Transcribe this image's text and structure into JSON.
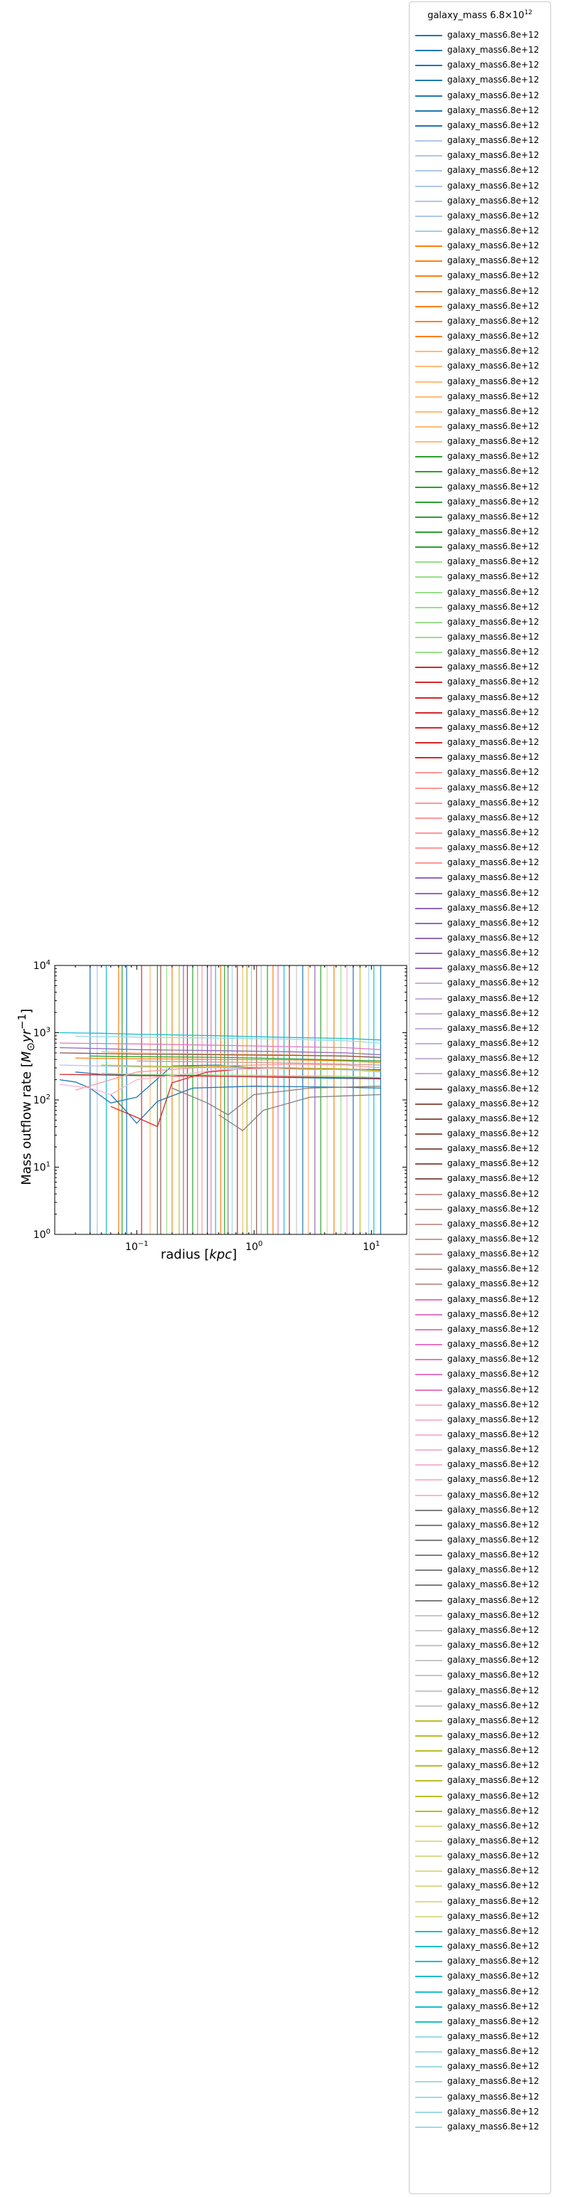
{
  "chart_data": {
    "type": "line",
    "xlabel": "radius [kpc]",
    "ylabel": "Mass outflow rate [M⊙yr⁻¹]",
    "x_scale": "log",
    "y_scale": "log",
    "xlim": [
      0.02,
      20
    ],
    "ylim": [
      1,
      10000
    ],
    "x_ticks": [
      {
        "value": 0.1,
        "base": "10",
        "exp": "−1"
      },
      {
        "value": 1,
        "base": "10",
        "exp": "0"
      },
      {
        "value": 10,
        "base": "10",
        "exp": "1"
      }
    ],
    "y_ticks": [
      {
        "value": 1,
        "base": "10",
        "exp": "0"
      },
      {
        "value": 10,
        "base": "10",
        "exp": "1"
      },
      {
        "value": 100,
        "base": "10",
        "exp": "2"
      },
      {
        "value": 1000,
        "base": "10",
        "exp": "3"
      },
      {
        "value": 10000,
        "base": "10",
        "exp": "4"
      }
    ],
    "legend": {
      "title_base": "galaxy_mass 6.8×10",
      "title_exp": "12",
      "placement": "outside right",
      "entry_label": "galaxy_mass6.8e+12",
      "colors": [
        "#1f77b4",
        "#aec7e8",
        "#ff7f0e",
        "#ffbb78",
        "#2ca02c",
        "#98df8a",
        "#d62728",
        "#ff9896",
        "#9467bd",
        "#c5b0d5",
        "#8c564b",
        "#c49c94",
        "#e377c2",
        "#f7b6d2",
        "#7f7f7f",
        "#c7c7c7",
        "#bcbd22",
        "#dbdb8d",
        "#17becf",
        "#9edae5"
      ],
      "entries_per_color": 7
    },
    "series": [
      {
        "color": "#1f77b4",
        "x": [
          0.022,
          0.03,
          0.04,
          0.06,
          0.1,
          0.2,
          0.5,
          1,
          3,
          12
        ],
        "y": [
          200,
          185,
          150,
          90,
          110,
          320,
          330,
          300,
          285,
          280
        ]
      },
      {
        "color": "#1f77b4",
        "x": [
          0.03,
          0.05,
          0.1,
          0.3,
          1,
          5,
          12
        ],
        "y": [
          260,
          240,
          235,
          230,
          220,
          210,
          205
        ]
      },
      {
        "color": "#1f77b4",
        "x": [
          0.06,
          0.08,
          0.1,
          0.15,
          0.3,
          1,
          5,
          12
        ],
        "y": [
          120,
          70,
          45,
          95,
          150,
          160,
          155,
          150
        ]
      },
      {
        "color": "#aec7e8",
        "x": [
          0.022,
          0.05,
          0.1,
          0.5,
          2,
          6,
          12
        ],
        "y": [
          330,
          320,
          310,
          300,
          290,
          280,
          260
        ]
      },
      {
        "color": "#ff7f0e",
        "x": [
          0.03,
          0.1,
          0.5,
          2,
          6,
          12
        ],
        "y": [
          420,
          410,
          400,
          395,
          380,
          360
        ]
      },
      {
        "color": "#ffbb78",
        "x": [
          0.05,
          0.1,
          0.5,
          2,
          6,
          12
        ],
        "y": [
          520,
          500,
          480,
          470,
          450,
          420
        ]
      },
      {
        "color": "#2ca02c",
        "x": [
          0.04,
          0.1,
          0.5,
          2,
          6,
          12
        ],
        "y": [
          450,
          440,
          430,
          410,
          390,
          380
        ]
      },
      {
        "color": "#98df8a",
        "x": [
          0.05,
          0.1,
          0.5,
          2,
          6,
          12
        ],
        "y": [
          250,
          240,
          235,
          230,
          225,
          215
        ]
      },
      {
        "color": "#d62728",
        "x": [
          0.022,
          0.05,
          0.1,
          0.5,
          2,
          6,
          12
        ],
        "y": [
          240,
          235,
          230,
          225,
          220,
          215,
          210
        ]
      },
      {
        "color": "#d62728",
        "x": [
          0.06,
          0.1,
          0.15,
          0.2,
          0.4,
          1,
          5,
          12
        ],
        "y": [
          80,
          55,
          40,
          180,
          260,
          300,
          290,
          280
        ]
      },
      {
        "color": "#ff9896",
        "x": [
          0.03,
          0.06,
          0.1,
          0.5,
          2,
          6,
          12
        ],
        "y": [
          140,
          200,
          260,
          320,
          340,
          330,
          300
        ]
      },
      {
        "color": "#9467bd",
        "x": [
          0.022,
          0.05,
          0.1,
          0.5,
          2,
          6,
          12
        ],
        "y": [
          600,
          580,
          560,
          540,
          520,
          500,
          470
        ]
      },
      {
        "color": "#8c564b",
        "x": [
          0.022,
          0.05,
          0.1,
          0.5,
          2,
          6,
          12
        ],
        "y": [
          500,
          490,
          480,
          470,
          460,
          450,
          430
        ]
      },
      {
        "color": "#c49c94",
        "x": [
          0.1,
          0.3,
          1,
          3,
          12
        ],
        "y": [
          380,
          370,
          360,
          350,
          330
        ]
      },
      {
        "color": "#e377c2",
        "x": [
          0.022,
          0.1,
          0.5,
          2,
          6,
          12
        ],
        "y": [
          700,
          680,
          650,
          620,
          600,
          560
        ]
      },
      {
        "color": "#f7b6d2",
        "x": [
          0.022,
          0.04,
          0.06,
          0.1,
          0.5,
          2,
          6,
          12
        ],
        "y": [
          170,
          150,
          120,
          200,
          280,
          300,
          290,
          270
        ]
      },
      {
        "color": "#7f7f7f",
        "x": [
          0.2,
          0.4,
          0.6,
          1,
          3,
          12
        ],
        "y": [
          150,
          90,
          60,
          120,
          150,
          160
        ]
      },
      {
        "color": "#7f7f7f",
        "x": [
          0.5,
          0.8,
          1.2,
          3,
          12
        ],
        "y": [
          60,
          35,
          70,
          110,
          120
        ]
      },
      {
        "color": "#bcbd22",
        "x": [
          0.05,
          0.1,
          0.5,
          2,
          6,
          12
        ],
        "y": [
          330,
          320,
          310,
          300,
          290,
          270
        ]
      },
      {
        "color": "#17becf",
        "x": [
          0.022,
          0.05,
          0.1,
          0.5,
          2,
          6,
          12
        ],
        "y": [
          1000,
          980,
          950,
          900,
          850,
          820,
          780
        ]
      },
      {
        "color": "#9edae5",
        "x": [
          0.03,
          0.1,
          0.5,
          2,
          6,
          12
        ],
        "y": [
          880,
          860,
          830,
          800,
          760,
          700
        ]
      }
    ],
    "vertical_lines": [
      {
        "x": 0.04,
        "color": "#1f77b4"
      },
      {
        "x": 0.046,
        "color": "#aec7e8"
      },
      {
        "x": 0.055,
        "color": "#17becf"
      },
      {
        "x": 0.07,
        "color": "#ff7f0e"
      },
      {
        "x": 0.075,
        "color": "#2ca02c"
      },
      {
        "x": 0.082,
        "color": "#1f77b4"
      },
      {
        "x": 0.11,
        "color": "#d62728"
      },
      {
        "x": 0.13,
        "color": "#ffbb78"
      },
      {
        "x": 0.15,
        "color": "#2ca02c"
      },
      {
        "x": 0.16,
        "color": "#8c564b"
      },
      {
        "x": 0.18,
        "color": "#98df8a"
      },
      {
        "x": 0.2,
        "color": "#ff7f0e"
      },
      {
        "x": 0.23,
        "color": "#bcbd22"
      },
      {
        "x": 0.25,
        "color": "#9467bd"
      },
      {
        "x": 0.27,
        "color": "#d62728"
      },
      {
        "x": 0.3,
        "color": "#2ca02c"
      },
      {
        "x": 0.33,
        "color": "#c49c94"
      },
      {
        "x": 0.36,
        "color": "#ff9896"
      },
      {
        "x": 0.4,
        "color": "#1f77b4"
      },
      {
        "x": 0.43,
        "color": "#e377c2"
      },
      {
        "x": 0.47,
        "color": "#17becf"
      },
      {
        "x": 0.52,
        "color": "#ff7f0e"
      },
      {
        "x": 0.56,
        "color": "#2ca02c"
      },
      {
        "x": 0.6,
        "color": "#7f7f7f"
      },
      {
        "x": 0.65,
        "color": "#9edae5"
      },
      {
        "x": 0.72,
        "color": "#d62728"
      },
      {
        "x": 0.8,
        "color": "#ffbb78"
      },
      {
        "x": 0.87,
        "color": "#bcbd22"
      },
      {
        "x": 0.95,
        "color": "#98df8a"
      },
      {
        "x": 1.05,
        "color": "#8c564b"
      },
      {
        "x": 1.15,
        "color": "#aec7e8"
      },
      {
        "x": 1.3,
        "color": "#2ca02c"
      },
      {
        "x": 1.45,
        "color": "#ff7f0e"
      },
      {
        "x": 1.6,
        "color": "#e377c2"
      },
      {
        "x": 1.8,
        "color": "#17becf"
      },
      {
        "x": 2.0,
        "color": "#d62728"
      },
      {
        "x": 2.3,
        "color": "#c7c7c7"
      },
      {
        "x": 2.6,
        "color": "#1f77b4"
      },
      {
        "x": 2.9,
        "color": "#ffbb78"
      },
      {
        "x": 3.3,
        "color": "#9467bd"
      },
      {
        "x": 3.7,
        "color": "#2ca02c"
      },
      {
        "x": 4.2,
        "color": "#dbdb8d"
      },
      {
        "x": 4.8,
        "color": "#ff7f0e"
      },
      {
        "x": 5.5,
        "color": "#98df8a"
      },
      {
        "x": 6.2,
        "color": "#f7b6d2"
      },
      {
        "x": 7.0,
        "color": "#1f77b4"
      },
      {
        "x": 8.0,
        "color": "#bcbd22"
      },
      {
        "x": 9.5,
        "color": "#9edae5"
      },
      {
        "x": 10.5,
        "color": "#17becf"
      },
      {
        "x": 12,
        "color": "#1f77b4"
      }
    ]
  }
}
